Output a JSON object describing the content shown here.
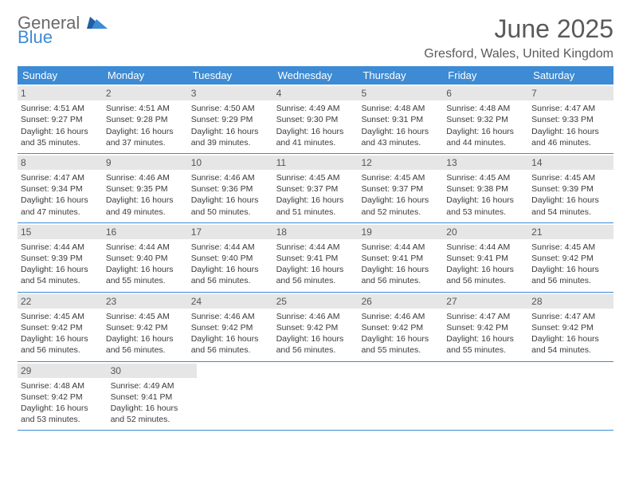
{
  "logo": {
    "general": "General",
    "blue": "Blue"
  },
  "title": "June 2025",
  "location": "Gresford, Wales, United Kingdom",
  "weekdays": [
    "Sunday",
    "Monday",
    "Tuesday",
    "Wednesday",
    "Thursday",
    "Friday",
    "Saturday"
  ],
  "colors": {
    "header_bg": "#3d8bd4",
    "header_text": "#ffffff",
    "daynum_bg": "#e6e6e6",
    "row_border": "#3d8bd4",
    "text": "#3a3a3a",
    "title_color": "#5a5a5a"
  },
  "weeks": [
    [
      {
        "num": "1",
        "sunrise": "Sunrise: 4:51 AM",
        "sunset": "Sunset: 9:27 PM",
        "daylight": "Daylight: 16 hours and 35 minutes."
      },
      {
        "num": "2",
        "sunrise": "Sunrise: 4:51 AM",
        "sunset": "Sunset: 9:28 PM",
        "daylight": "Daylight: 16 hours and 37 minutes."
      },
      {
        "num": "3",
        "sunrise": "Sunrise: 4:50 AM",
        "sunset": "Sunset: 9:29 PM",
        "daylight": "Daylight: 16 hours and 39 minutes."
      },
      {
        "num": "4",
        "sunrise": "Sunrise: 4:49 AM",
        "sunset": "Sunset: 9:30 PM",
        "daylight": "Daylight: 16 hours and 41 minutes."
      },
      {
        "num": "5",
        "sunrise": "Sunrise: 4:48 AM",
        "sunset": "Sunset: 9:31 PM",
        "daylight": "Daylight: 16 hours and 43 minutes."
      },
      {
        "num": "6",
        "sunrise": "Sunrise: 4:48 AM",
        "sunset": "Sunset: 9:32 PM",
        "daylight": "Daylight: 16 hours and 44 minutes."
      },
      {
        "num": "7",
        "sunrise": "Sunrise: 4:47 AM",
        "sunset": "Sunset: 9:33 PM",
        "daylight": "Daylight: 16 hours and 46 minutes."
      }
    ],
    [
      {
        "num": "8",
        "sunrise": "Sunrise: 4:47 AM",
        "sunset": "Sunset: 9:34 PM",
        "daylight": "Daylight: 16 hours and 47 minutes."
      },
      {
        "num": "9",
        "sunrise": "Sunrise: 4:46 AM",
        "sunset": "Sunset: 9:35 PM",
        "daylight": "Daylight: 16 hours and 49 minutes."
      },
      {
        "num": "10",
        "sunrise": "Sunrise: 4:46 AM",
        "sunset": "Sunset: 9:36 PM",
        "daylight": "Daylight: 16 hours and 50 minutes."
      },
      {
        "num": "11",
        "sunrise": "Sunrise: 4:45 AM",
        "sunset": "Sunset: 9:37 PM",
        "daylight": "Daylight: 16 hours and 51 minutes."
      },
      {
        "num": "12",
        "sunrise": "Sunrise: 4:45 AM",
        "sunset": "Sunset: 9:37 PM",
        "daylight": "Daylight: 16 hours and 52 minutes."
      },
      {
        "num": "13",
        "sunrise": "Sunrise: 4:45 AM",
        "sunset": "Sunset: 9:38 PM",
        "daylight": "Daylight: 16 hours and 53 minutes."
      },
      {
        "num": "14",
        "sunrise": "Sunrise: 4:45 AM",
        "sunset": "Sunset: 9:39 PM",
        "daylight": "Daylight: 16 hours and 54 minutes."
      }
    ],
    [
      {
        "num": "15",
        "sunrise": "Sunrise: 4:44 AM",
        "sunset": "Sunset: 9:39 PM",
        "daylight": "Daylight: 16 hours and 54 minutes."
      },
      {
        "num": "16",
        "sunrise": "Sunrise: 4:44 AM",
        "sunset": "Sunset: 9:40 PM",
        "daylight": "Daylight: 16 hours and 55 minutes."
      },
      {
        "num": "17",
        "sunrise": "Sunrise: 4:44 AM",
        "sunset": "Sunset: 9:40 PM",
        "daylight": "Daylight: 16 hours and 56 minutes."
      },
      {
        "num": "18",
        "sunrise": "Sunrise: 4:44 AM",
        "sunset": "Sunset: 9:41 PM",
        "daylight": "Daylight: 16 hours and 56 minutes."
      },
      {
        "num": "19",
        "sunrise": "Sunrise: 4:44 AM",
        "sunset": "Sunset: 9:41 PM",
        "daylight": "Daylight: 16 hours and 56 minutes."
      },
      {
        "num": "20",
        "sunrise": "Sunrise: 4:44 AM",
        "sunset": "Sunset: 9:41 PM",
        "daylight": "Daylight: 16 hours and 56 minutes."
      },
      {
        "num": "21",
        "sunrise": "Sunrise: 4:45 AM",
        "sunset": "Sunset: 9:42 PM",
        "daylight": "Daylight: 16 hours and 56 minutes."
      }
    ],
    [
      {
        "num": "22",
        "sunrise": "Sunrise: 4:45 AM",
        "sunset": "Sunset: 9:42 PM",
        "daylight": "Daylight: 16 hours and 56 minutes."
      },
      {
        "num": "23",
        "sunrise": "Sunrise: 4:45 AM",
        "sunset": "Sunset: 9:42 PM",
        "daylight": "Daylight: 16 hours and 56 minutes."
      },
      {
        "num": "24",
        "sunrise": "Sunrise: 4:46 AM",
        "sunset": "Sunset: 9:42 PM",
        "daylight": "Daylight: 16 hours and 56 minutes."
      },
      {
        "num": "25",
        "sunrise": "Sunrise: 4:46 AM",
        "sunset": "Sunset: 9:42 PM",
        "daylight": "Daylight: 16 hours and 56 minutes."
      },
      {
        "num": "26",
        "sunrise": "Sunrise: 4:46 AM",
        "sunset": "Sunset: 9:42 PM",
        "daylight": "Daylight: 16 hours and 55 minutes."
      },
      {
        "num": "27",
        "sunrise": "Sunrise: 4:47 AM",
        "sunset": "Sunset: 9:42 PM",
        "daylight": "Daylight: 16 hours and 55 minutes."
      },
      {
        "num": "28",
        "sunrise": "Sunrise: 4:47 AM",
        "sunset": "Sunset: 9:42 PM",
        "daylight": "Daylight: 16 hours and 54 minutes."
      }
    ],
    [
      {
        "num": "29",
        "sunrise": "Sunrise: 4:48 AM",
        "sunset": "Sunset: 9:42 PM",
        "daylight": "Daylight: 16 hours and 53 minutes."
      },
      {
        "num": "30",
        "sunrise": "Sunrise: 4:49 AM",
        "sunset": "Sunset: 9:41 PM",
        "daylight": "Daylight: 16 hours and 52 minutes."
      },
      null,
      null,
      null,
      null,
      null
    ]
  ]
}
